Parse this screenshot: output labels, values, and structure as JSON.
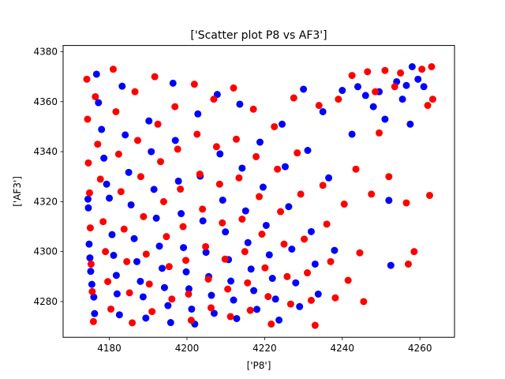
{
  "chart_data": {
    "type": "scatter",
    "title": "['Scatter plot P8 vs AF3']",
    "xlabel": "['P8']",
    "ylabel": "['AF3']",
    "xlim": [
      4168.1,
      4268.9
    ],
    "ylim": [
      4265.7,
      4382.5
    ],
    "xticks": [
      4180,
      4200,
      4220,
      4240,
      4260
    ],
    "yticks": [
      4280,
      4300,
      4320,
      4340,
      4360,
      4380
    ],
    "grid": false,
    "legend": "none",
    "series": [
      {
        "color": "#0000ff",
        "points": [
          [
            4174.5,
            4321.0
          ],
          [
            4174.6,
            4317.5
          ],
          [
            4174.8,
            4303.0
          ],
          [
            4175.0,
            4297.5
          ],
          [
            4175.2,
            4292.1
          ],
          [
            4175.5,
            4286.9
          ],
          [
            4176.0,
            4281.8
          ],
          [
            4176.2,
            4275.2
          ],
          [
            4176.7,
            4371.0
          ],
          [
            4177.2,
            4359.6
          ],
          [
            4178.0,
            4348.9
          ],
          [
            4178.6,
            4337.4
          ],
          [
            4179.3,
            4327.0
          ],
          [
            4180.0,
            4321.4
          ],
          [
            4180.7,
            4306.8
          ],
          [
            4181.1,
            4298.5
          ],
          [
            4181.8,
            4290.5
          ],
          [
            4182.0,
            4283.1
          ],
          [
            4182.6,
            4274.7
          ],
          [
            4183.3,
            4366.2
          ],
          [
            4184.1,
            4346.7
          ],
          [
            4185.0,
            4331.7
          ],
          [
            4185.6,
            4318.7
          ],
          [
            4186.4,
            4305.2
          ],
          [
            4187.1,
            4296.0
          ],
          [
            4188.0,
            4288.1
          ],
          [
            4188.7,
            4281.9
          ],
          [
            4189.4,
            4273.4
          ],
          [
            4190.2,
            4352.3
          ],
          [
            4190.8,
            4340.0
          ],
          [
            4191.5,
            4324.9
          ],
          [
            4192.1,
            4313.4
          ],
          [
            4192.9,
            4302.2
          ],
          [
            4193.6,
            4293.3
          ],
          [
            4194.2,
            4285.6
          ],
          [
            4195.1,
            4278.4
          ],
          [
            4195.8,
            4271.6
          ],
          [
            4196.4,
            4367.4
          ],
          [
            4197.0,
            4344.5
          ],
          [
            4197.8,
            4328.2
          ],
          [
            4198.5,
            4315.2
          ],
          [
            4199.1,
            4301.6
          ],
          [
            4199.8,
            4291.9
          ],
          [
            4200.5,
            4285.1
          ],
          [
            4201.2,
            4277.0
          ],
          [
            4202.0,
            4271.0
          ],
          [
            4202.8,
            4355.1
          ],
          [
            4203.4,
            4330.2
          ],
          [
            4204.1,
            4312.3
          ],
          [
            4204.9,
            4299.7
          ],
          [
            4205.6,
            4290.0
          ],
          [
            4206.3,
            4282.5
          ],
          [
            4207.0,
            4275.3
          ],
          [
            4207.8,
            4362.9
          ],
          [
            4208.5,
            4339.1
          ],
          [
            4209.2,
            4320.6
          ],
          [
            4209.9,
            4307.9
          ],
          [
            4210.7,
            4296.8
          ],
          [
            4211.3,
            4288.2
          ],
          [
            4212.0,
            4280.6
          ],
          [
            4212.8,
            4273.2
          ],
          [
            4213.6,
            4359.0
          ],
          [
            4214.2,
            4333.4
          ],
          [
            4215.1,
            4316.3
          ],
          [
            4215.7,
            4303.6
          ],
          [
            4216.5,
            4293.0
          ],
          [
            4217.2,
            4284.4
          ],
          [
            4218.0,
            4276.9
          ],
          [
            4218.8,
            4343.8
          ],
          [
            4219.6,
            4325.8
          ],
          [
            4220.4,
            4310.5
          ],
          [
            4221.2,
            4298.7
          ],
          [
            4222.0,
            4289.3
          ],
          [
            4222.8,
            4281.0
          ],
          [
            4223.7,
            4272.6
          ],
          [
            4224.5,
            4351.0
          ],
          [
            4225.3,
            4334.0
          ],
          [
            4226.2,
            4318.0
          ],
          [
            4227.0,
            4301.0
          ],
          [
            4228.0,
            4287.5
          ],
          [
            4229.0,
            4278.0
          ],
          [
            4230.0,
            4365.0
          ],
          [
            4231.1,
            4340.5
          ],
          [
            4232.0,
            4308.0
          ],
          [
            4233.0,
            4295.0
          ],
          [
            4233.8,
            4283.0
          ],
          [
            4235.0,
            4356.0
          ],
          [
            4236.5,
            4329.5
          ],
          [
            4238.0,
            4300.5
          ],
          [
            4240.0,
            4364.5
          ],
          [
            4242.5,
            4347.0
          ],
          [
            4244.0,
            4366.0
          ],
          [
            4246.0,
            4362.5
          ],
          [
            4248.0,
            4358.0
          ],
          [
            4249.5,
            4364.0
          ],
          [
            4251.0,
            4353.0
          ],
          [
            4252.0,
            4320.5
          ],
          [
            4252.5,
            4294.5
          ],
          [
            4254.0,
            4368.0
          ],
          [
            4255.5,
            4361.0
          ],
          [
            4256.5,
            4366.5
          ],
          [
            4257.5,
            4351.0
          ],
          [
            4258.0,
            4374.0
          ],
          [
            4259.5,
            4369.0
          ],
          [
            4261.0,
            4366.0
          ]
        ]
      },
      {
        "color": "#ff0000",
        "points": [
          [
            4174.2,
            4369.0
          ],
          [
            4174.4,
            4353.0
          ],
          [
            4174.6,
            4335.5
          ],
          [
            4174.9,
            4323.5
          ],
          [
            4175.1,
            4309.5
          ],
          [
            4175.3,
            4295.0
          ],
          [
            4175.6,
            4284.0
          ],
          [
            4175.9,
            4272.0
          ],
          [
            4176.4,
            4362.0
          ],
          [
            4177.0,
            4343.0
          ],
          [
            4177.7,
            4329.0
          ],
          [
            4178.4,
            4312.0
          ],
          [
            4179.0,
            4300.0
          ],
          [
            4179.6,
            4288.0
          ],
          [
            4180.4,
            4277.0
          ],
          [
            4181.0,
            4373.0
          ],
          [
            4181.7,
            4356.0
          ],
          [
            4182.4,
            4339.0
          ],
          [
            4183.0,
            4324.0
          ],
          [
            4183.8,
            4309.0
          ],
          [
            4184.5,
            4296.0
          ],
          [
            4185.2,
            4283.5
          ],
          [
            4185.9,
            4271.5
          ],
          [
            4186.6,
            4364.0
          ],
          [
            4187.3,
            4344.5
          ],
          [
            4188.1,
            4330.0
          ],
          [
            4188.8,
            4314.0
          ],
          [
            4189.5,
            4299.0
          ],
          [
            4190.3,
            4287.0
          ],
          [
            4191.0,
            4276.0
          ],
          [
            4191.7,
            4370.0
          ],
          [
            4192.5,
            4351.0
          ],
          [
            4193.2,
            4336.0
          ],
          [
            4194.0,
            4320.0
          ],
          [
            4194.7,
            4306.0
          ],
          [
            4195.4,
            4294.0
          ],
          [
            4196.1,
            4281.0
          ],
          [
            4196.9,
            4358.0
          ],
          [
            4197.6,
            4341.0
          ],
          [
            4198.3,
            4325.0
          ],
          [
            4199.0,
            4310.0
          ],
          [
            4199.7,
            4296.5
          ],
          [
            4200.4,
            4283.0
          ],
          [
            4201.1,
            4272.5
          ],
          [
            4201.9,
            4367.0
          ],
          [
            4202.6,
            4347.0
          ],
          [
            4203.3,
            4331.0
          ],
          [
            4204.0,
            4317.0
          ],
          [
            4204.8,
            4302.0
          ],
          [
            4205.5,
            4289.0
          ],
          [
            4206.2,
            4277.5
          ],
          [
            4206.9,
            4361.0
          ],
          [
            4207.6,
            4342.0
          ],
          [
            4208.4,
            4327.0
          ],
          [
            4209.1,
            4311.5
          ],
          [
            4209.8,
            4297.0
          ],
          [
            4210.5,
            4285.0
          ],
          [
            4211.2,
            4274.0
          ],
          [
            4212.0,
            4365.5
          ],
          [
            4212.7,
            4345.0
          ],
          [
            4213.4,
            4329.5
          ],
          [
            4214.2,
            4313.0
          ],
          [
            4214.9,
            4300.0
          ],
          [
            4215.6,
            4287.5
          ],
          [
            4216.3,
            4276.5
          ],
          [
            4217.1,
            4357.0
          ],
          [
            4217.8,
            4338.0
          ],
          [
            4218.6,
            4322.0
          ],
          [
            4219.3,
            4307.0
          ],
          [
            4220.1,
            4293.5
          ],
          [
            4220.9,
            4282.0
          ],
          [
            4221.7,
            4271.0
          ],
          [
            4222.5,
            4350.0
          ],
          [
            4223.3,
            4333.0
          ],
          [
            4224.1,
            4316.0
          ],
          [
            4225.0,
            4303.0
          ],
          [
            4225.8,
            4290.0
          ],
          [
            4226.7,
            4279.0
          ],
          [
            4227.5,
            4361.5
          ],
          [
            4228.4,
            4339.5
          ],
          [
            4229.3,
            4323.0
          ],
          [
            4230.2,
            4305.0
          ],
          [
            4231.0,
            4291.5
          ],
          [
            4232.0,
            4280.5
          ],
          [
            4233.0,
            4270.5
          ],
          [
            4234.0,
            4358.5
          ],
          [
            4235.0,
            4326.5
          ],
          [
            4236.0,
            4311.0
          ],
          [
            4237.0,
            4296.0
          ],
          [
            4238.2,
            4281.5
          ],
          [
            4239.0,
            4361.0
          ],
          [
            4240.5,
            4319.0
          ],
          [
            4241.5,
            4288.5
          ],
          [
            4242.5,
            4370.5
          ],
          [
            4243.5,
            4333.0
          ],
          [
            4244.5,
            4299.5
          ],
          [
            4245.5,
            4280.0
          ],
          [
            4246.5,
            4372.0
          ],
          [
            4247.5,
            4323.0
          ],
          [
            4248.5,
            4364.0
          ],
          [
            4249.5,
            4347.5
          ],
          [
            4251.0,
            4372.5
          ],
          [
            4252.0,
            4330.0
          ],
          [
            4253.5,
            4366.0
          ],
          [
            4255.0,
            4371.5
          ],
          [
            4256.5,
            4319.5
          ],
          [
            4257.0,
            4295.0
          ],
          [
            4258.5,
            4300.0
          ],
          [
            4260.5,
            4373.0
          ],
          [
            4262.0,
            4358.5
          ],
          [
            4262.5,
            4322.5
          ],
          [
            4263.0,
            4374.0
          ],
          [
            4263.3,
            4361.0
          ]
        ]
      }
    ]
  }
}
